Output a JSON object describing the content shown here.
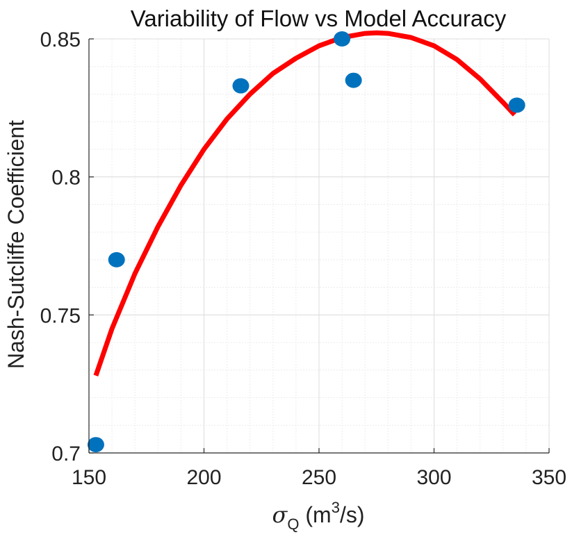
{
  "chart_data": {
    "type": "scatter",
    "title": "Variability of Flow vs Model Accuracy",
    "xlabel": {
      "symbol": "σ",
      "subscript": "Q",
      "units_prefix": " (m",
      "superscript": "3",
      "units_suffix": "/s)"
    },
    "ylabel": "Nash-Sutcliffe Coefficient",
    "xlim": [
      150,
      350
    ],
    "ylim": [
      0.7,
      0.85
    ],
    "x_ticks": [
      150,
      200,
      250,
      300,
      350
    ],
    "x_tick_labels": [
      "150",
      "200",
      "250",
      "300",
      "350"
    ],
    "y_ticks": [
      0.7,
      0.75,
      0.8,
      0.85
    ],
    "y_tick_labels": [
      "0.7",
      "0.75",
      "0.8",
      "0.85"
    ],
    "x_minor_step": 10,
    "y_minor_step": 0.01,
    "grid": true,
    "series": [
      {
        "kind": "points",
        "color": "#0072BD",
        "x": [
          153,
          162,
          216,
          260,
          265,
          336
        ],
        "y": [
          0.703,
          0.77,
          0.833,
          0.85,
          0.835,
          0.826
        ]
      },
      {
        "kind": "fit-curve",
        "color": "#FF0000",
        "x": [
          153,
          160,
          170,
          180,
          190,
          200,
          210,
          220,
          230,
          240,
          250,
          260,
          270,
          275,
          280,
          290,
          300,
          310,
          320,
          330,
          335
        ],
        "y": [
          0.728,
          0.745,
          0.765,
          0.782,
          0.797,
          0.81,
          0.821,
          0.83,
          0.8375,
          0.843,
          0.8475,
          0.8505,
          0.852,
          0.8522,
          0.852,
          0.8505,
          0.8475,
          0.8425,
          0.8355,
          0.827,
          0.8225
        ]
      }
    ]
  }
}
